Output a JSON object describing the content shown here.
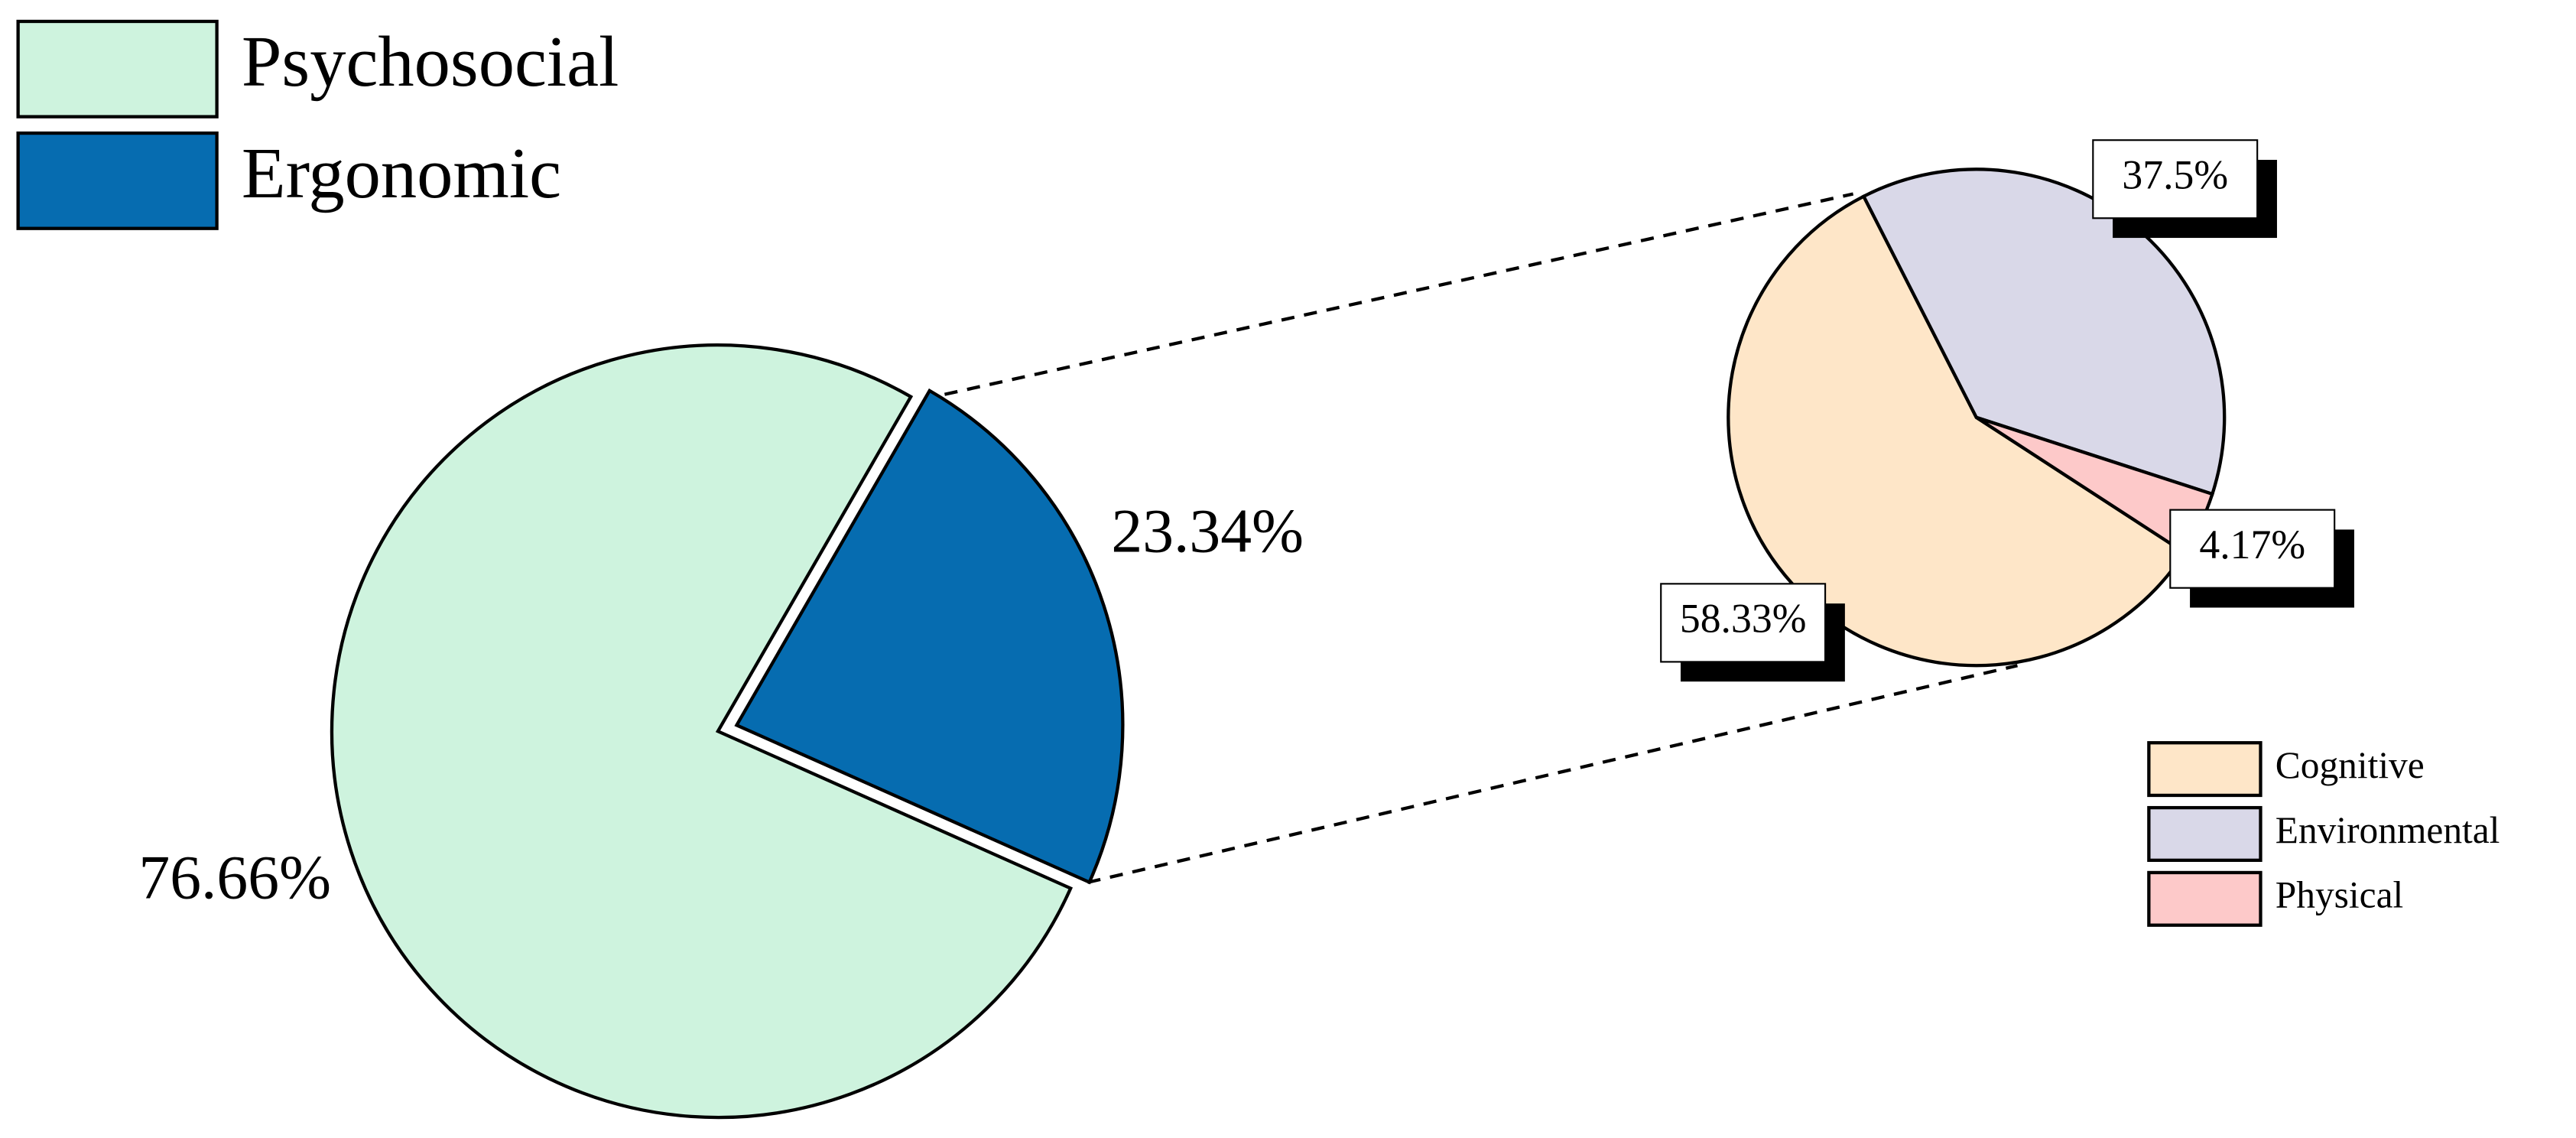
{
  "chart_data": [
    {
      "type": "pie",
      "categories": [
        "Psychosocial",
        "Ergonomic"
      ],
      "values": [
        76.66,
        23.34
      ],
      "value_labels": [
        "76.66%",
        "23.34%"
      ],
      "colors": [
        "#cef3de",
        "#066cb0"
      ]
    },
    {
      "type": "pie",
      "categories": [
        "Cognitive",
        "Environmental",
        "Physical"
      ],
      "values": [
        58.33,
        37.5,
        4.17
      ],
      "value_labels": [
        "58.33%",
        "37.5%",
        "4.17%"
      ],
      "colors": [
        "#fee6c8",
        "#d9d8e8",
        "#fdc9c9"
      ]
    }
  ]
}
